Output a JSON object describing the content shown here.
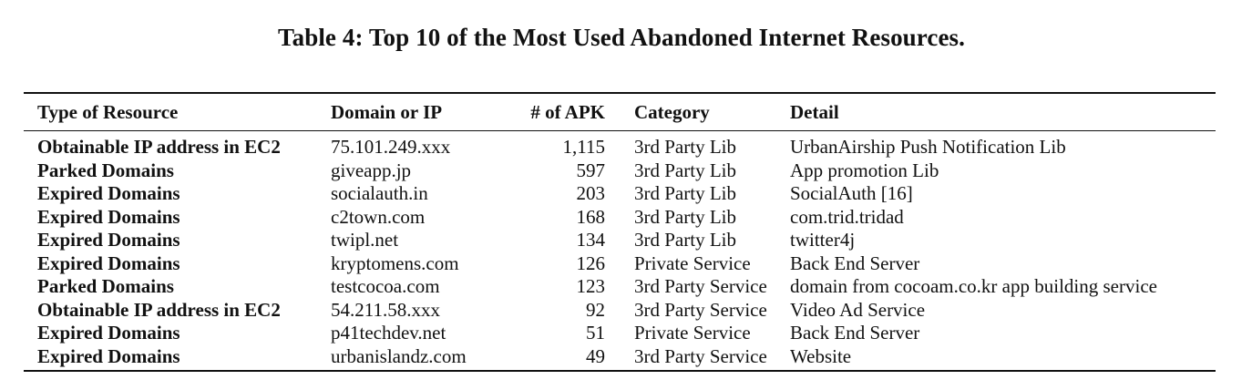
{
  "caption": "Table 4: Top 10 of the Most Used Abandoned Internet Resources.",
  "table": {
    "headers": {
      "type": "Type of Resource",
      "domain": "Domain or IP",
      "apk": "# of APK",
      "category": "Category",
      "detail": "Detail"
    },
    "rows": [
      {
        "type": "Obtainable IP address in EC2",
        "domain": "75.101.249.xxx",
        "apk": "1,115",
        "category": "3rd Party Lib",
        "detail": "UrbanAirship Push Notification Lib"
      },
      {
        "type": "Parked Domains",
        "domain": "giveapp.jp",
        "apk": "597",
        "category": "3rd Party Lib",
        "detail": "App promotion Lib"
      },
      {
        "type": "Expired Domains",
        "domain": "socialauth.in",
        "apk": "203",
        "category": "3rd Party Lib",
        "detail": "SocialAuth [16]"
      },
      {
        "type": "Expired Domains",
        "domain": "c2town.com",
        "apk": "168",
        "category": "3rd Party Lib",
        "detail": "com.trid.tridad"
      },
      {
        "type": "Expired Domains",
        "domain": "twipl.net",
        "apk": "134",
        "category": "3rd Party Lib",
        "detail": "twitter4j"
      },
      {
        "type": "Expired Domains",
        "domain": "kryptomens.com",
        "apk": "126",
        "category": "Private Service",
        "detail": "Back End Server"
      },
      {
        "type": "Parked Domains",
        "domain": "testcocoa.com",
        "apk": "123",
        "category": "3rd Party Service",
        "detail": "domain from cocoam.co.kr app building service"
      },
      {
        "type": "Obtainable IP address in EC2",
        "domain": "54.211.58.xxx",
        "apk": "92",
        "category": "3rd Party Service",
        "detail": "Video Ad Service"
      },
      {
        "type": "Expired Domains",
        "domain": "p41techdev.net",
        "apk": "51",
        "category": "Private Service",
        "detail": "Back End Server"
      },
      {
        "type": "Expired Domains",
        "domain": "urbanislandz.com",
        "apk": "49",
        "category": "3rd Party Service",
        "detail": "Website"
      }
    ]
  }
}
